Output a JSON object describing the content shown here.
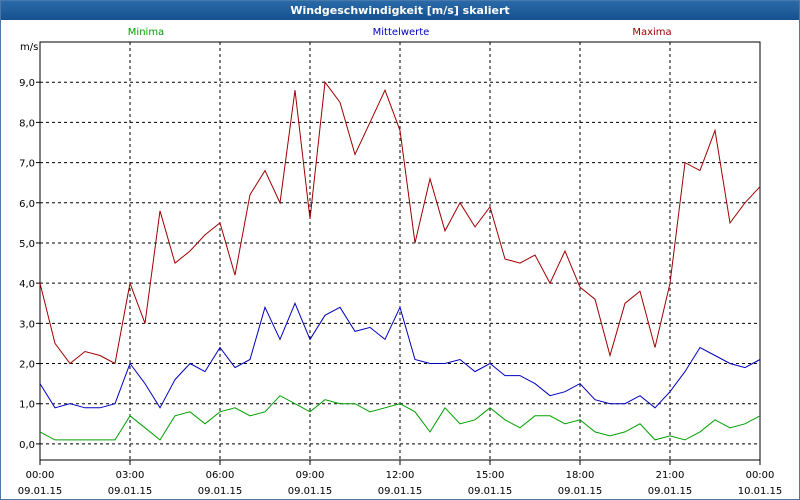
{
  "window": {
    "title": "Windgeschwindigkeit [m/s] skaliert"
  },
  "chart_data": {
    "type": "line",
    "title": "Windgeschwindigkeit [m/s] skaliert",
    "ylabel": "m/s",
    "ylim": [
      -0.4,
      10.0
    ],
    "yticks": [
      0.0,
      1.0,
      2.0,
      3.0,
      4.0,
      5.0,
      6.0,
      7.0,
      8.0,
      9.0
    ],
    "ytick_labels": [
      "0,0",
      "1,0",
      "2,0",
      "3,0",
      "4,0",
      "5,0",
      "6,0",
      "7,0",
      "8,0",
      "9,0"
    ],
    "xlim": [
      0,
      24
    ],
    "xticks": [
      0,
      3,
      6,
      9,
      12,
      15,
      18,
      21,
      24
    ],
    "xtick_labels": [
      {
        "time": "00:00",
        "date": "09.01.15"
      },
      {
        "time": "03:00",
        "date": "09.01.15"
      },
      {
        "time": "06:00",
        "date": "09.01.15"
      },
      {
        "time": "09:00",
        "date": "09.01.15"
      },
      {
        "time": "12:00",
        "date": "09.01.15"
      },
      {
        "time": "15:00",
        "date": "09.01.15"
      },
      {
        "time": "18:00",
        "date": "09.01.15"
      },
      {
        "time": "21:00",
        "date": "09.01.15"
      },
      {
        "time": "00:00",
        "date": "10.01.15"
      }
    ],
    "grid": true,
    "legend": "top",
    "series": [
      {
        "name": "Minima",
        "color": "#00a000",
        "x": [
          0.0,
          0.5,
          1.0,
          1.5,
          2.0,
          2.5,
          3.0,
          3.5,
          4.0,
          4.5,
          5.0,
          5.5,
          6.0,
          6.5,
          7.0,
          7.5,
          8.0,
          8.5,
          9.0,
          9.5,
          10.0,
          10.5,
          11.0,
          11.5,
          12.0,
          12.5,
          13.0,
          13.5,
          14.0,
          14.5,
          15.0,
          15.5,
          16.0,
          16.5,
          17.0,
          17.5,
          18.0,
          18.5,
          19.0,
          19.5,
          20.0,
          20.5,
          21.0,
          21.5,
          22.0,
          22.5,
          23.0,
          23.5,
          24.0
        ],
        "values": [
          0.3,
          0.1,
          0.1,
          0.1,
          0.1,
          0.1,
          0.7,
          0.4,
          0.1,
          0.7,
          0.8,
          0.5,
          0.8,
          0.9,
          0.7,
          0.8,
          1.2,
          1.0,
          0.8,
          1.1,
          1.0,
          1.0,
          0.8,
          0.9,
          1.0,
          0.8,
          0.3,
          0.9,
          0.5,
          0.6,
          0.9,
          0.6,
          0.4,
          0.7,
          0.7,
          0.5,
          0.6,
          0.3,
          0.2,
          0.3,
          0.5,
          0.1,
          0.2,
          0.1,
          0.3,
          0.6,
          0.4,
          0.5,
          0.7
        ]
      },
      {
        "name": "Mittelwerte",
        "color": "#0000c0",
        "x": [
          0.0,
          0.5,
          1.0,
          1.5,
          2.0,
          2.5,
          3.0,
          3.5,
          4.0,
          4.5,
          5.0,
          5.5,
          6.0,
          6.5,
          7.0,
          7.5,
          8.0,
          8.5,
          9.0,
          9.5,
          10.0,
          10.5,
          11.0,
          11.5,
          12.0,
          12.5,
          13.0,
          13.5,
          14.0,
          14.5,
          15.0,
          15.5,
          16.0,
          16.5,
          17.0,
          17.5,
          18.0,
          18.5,
          19.0,
          19.5,
          20.0,
          20.5,
          21.0,
          21.5,
          22.0,
          22.5,
          23.0,
          23.5,
          24.0
        ],
        "values": [
          1.5,
          0.9,
          1.0,
          0.9,
          0.9,
          1.0,
          2.0,
          1.5,
          0.9,
          1.6,
          2.0,
          1.8,
          2.4,
          1.9,
          2.1,
          3.4,
          2.6,
          3.5,
          2.6,
          3.2,
          3.4,
          2.8,
          2.9,
          2.6,
          3.4,
          2.1,
          2.0,
          2.0,
          2.1,
          1.8,
          2.0,
          1.7,
          1.7,
          1.5,
          1.2,
          1.3,
          1.5,
          1.1,
          1.0,
          1.0,
          1.2,
          0.9,
          1.3,
          1.8,
          2.4,
          2.2,
          2.0,
          1.9,
          2.1
        ]
      },
      {
        "name": "Maxima",
        "color": "#a00000",
        "x": [
          0.0,
          0.5,
          1.0,
          1.5,
          2.0,
          2.5,
          3.0,
          3.5,
          4.0,
          4.5,
          5.0,
          5.5,
          6.0,
          6.5,
          7.0,
          7.5,
          8.0,
          8.5,
          9.0,
          9.5,
          10.0,
          10.5,
          11.0,
          11.5,
          12.0,
          12.5,
          13.0,
          13.5,
          14.0,
          14.5,
          15.0,
          15.5,
          16.0,
          16.5,
          17.0,
          17.5,
          18.0,
          18.5,
          19.0,
          19.5,
          20.0,
          20.5,
          21.0,
          21.5,
          22.0,
          22.5,
          23.0,
          23.5,
          24.0
        ],
        "values": [
          4.0,
          2.5,
          2.0,
          2.3,
          2.2,
          2.0,
          4.0,
          3.0,
          5.8,
          4.5,
          4.8,
          5.2,
          5.5,
          4.2,
          6.2,
          6.8,
          6.0,
          8.8,
          5.6,
          9.0,
          8.5,
          7.2,
          8.0,
          8.8,
          7.8,
          5.0,
          6.6,
          5.3,
          6.0,
          5.4,
          5.9,
          4.6,
          4.5,
          4.7,
          4.0,
          4.8,
          3.9,
          3.6,
          2.2,
          3.5,
          3.8,
          2.4,
          4.0,
          7.0,
          6.8,
          7.8,
          5.5,
          6.0,
          6.4
        ]
      }
    ]
  }
}
